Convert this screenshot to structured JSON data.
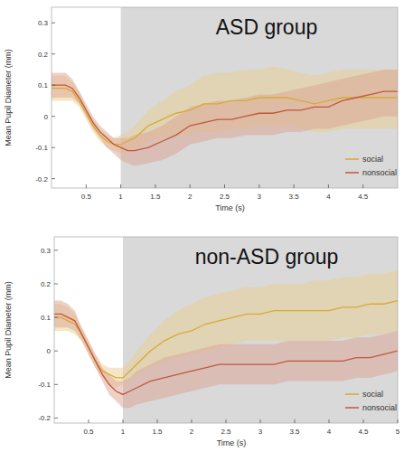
{
  "chart_data": [
    {
      "type": "line",
      "title": "ASD group",
      "x_label": "Time (s)",
      "y_label": "Mean Pupil Diameter (mm)",
      "x": [
        0,
        0.1,
        0.2,
        0.3,
        0.4,
        0.5,
        0.6,
        0.7,
        0.8,
        0.9,
        1.0,
        1.1,
        1.2,
        1.4,
        1.6,
        1.8,
        2.0,
        2.2,
        2.4,
        2.6,
        2.8,
        3.0,
        3.2,
        3.4,
        3.6,
        3.8,
        4.0,
        4.2,
        4.4,
        4.6,
        4.8,
        5.0
      ],
      "xlim": [
        0,
        5
      ],
      "xticks": [
        0.5,
        1,
        1.5,
        2,
        2.5,
        3,
        3.5,
        4,
        4.5
      ],
      "ylim": [
        -0.23,
        0.35
      ],
      "yticks": [
        -0.2,
        -0.1,
        0,
        0.1,
        0.2,
        0.3
      ],
      "shaded_region": [
        1,
        5
      ],
      "legend": "lower right",
      "series": [
        {
          "name": "social",
          "color": "#d9a935",
          "values": [
            0.09,
            0.09,
            0.09,
            0.08,
            0.05,
            0.01,
            -0.03,
            -0.06,
            -0.08,
            -0.09,
            -0.09,
            -0.08,
            -0.07,
            -0.03,
            -0.01,
            0.01,
            0.02,
            0.04,
            0.04,
            0.05,
            0.05,
            0.06,
            0.06,
            0.06,
            0.05,
            0.04,
            0.05,
            0.06,
            0.06,
            0.06,
            0.06,
            0.06
          ],
          "lower": [
            0.05,
            0.05,
            0.05,
            0.05,
            0.03,
            -0.01,
            -0.05,
            -0.08,
            -0.1,
            -0.11,
            -0.12,
            -0.11,
            -0.11,
            -0.08,
            -0.07,
            -0.06,
            -0.06,
            -0.05,
            -0.05,
            -0.04,
            -0.04,
            -0.03,
            -0.03,
            -0.03,
            -0.04,
            -0.05,
            -0.05,
            -0.04,
            -0.04,
            -0.04,
            -0.04,
            -0.04
          ],
          "upper": [
            0.13,
            0.13,
            0.13,
            0.11,
            0.08,
            0.03,
            -0.01,
            -0.04,
            -0.06,
            -0.07,
            -0.06,
            -0.05,
            -0.03,
            0.02,
            0.05,
            0.08,
            0.1,
            0.13,
            0.14,
            0.14,
            0.15,
            0.15,
            0.16,
            0.15,
            0.14,
            0.13,
            0.14,
            0.15,
            0.15,
            0.15,
            0.15,
            0.15
          ]
        },
        {
          "name": "nonsocial",
          "color": "#c0573b",
          "values": [
            0.1,
            0.1,
            0.1,
            0.09,
            0.06,
            0.02,
            -0.02,
            -0.05,
            -0.07,
            -0.09,
            -0.1,
            -0.11,
            -0.11,
            -0.1,
            -0.08,
            -0.06,
            -0.03,
            -0.02,
            -0.01,
            -0.01,
            0.0,
            0.01,
            0.01,
            0.02,
            0.02,
            0.03,
            0.03,
            0.05,
            0.06,
            0.07,
            0.08,
            0.08
          ],
          "lower": [
            0.06,
            0.06,
            0.06,
            0.06,
            0.04,
            0.0,
            -0.04,
            -0.07,
            -0.1,
            -0.12,
            -0.14,
            -0.15,
            -0.16,
            -0.15,
            -0.14,
            -0.12,
            -0.09,
            -0.08,
            -0.07,
            -0.07,
            -0.06,
            -0.06,
            -0.06,
            -0.05,
            -0.05,
            -0.04,
            -0.04,
            -0.03,
            -0.02,
            -0.01,
            0.0,
            0.0
          ],
          "upper": [
            0.14,
            0.14,
            0.14,
            0.12,
            0.08,
            0.04,
            0.0,
            -0.03,
            -0.05,
            -0.07,
            -0.07,
            -0.07,
            -0.06,
            -0.05,
            -0.03,
            0.0,
            0.03,
            0.04,
            0.05,
            0.05,
            0.06,
            0.07,
            0.07,
            0.08,
            0.09,
            0.1,
            0.11,
            0.12,
            0.13,
            0.14,
            0.15,
            0.15
          ]
        }
      ]
    },
    {
      "type": "line",
      "title": "non-ASD group",
      "x_label": "Time (s)",
      "y_label": "Mean Pupil Diameter (mm)",
      "x": [
        0,
        0.1,
        0.2,
        0.3,
        0.4,
        0.5,
        0.6,
        0.7,
        0.8,
        0.9,
        1.0,
        1.1,
        1.2,
        1.4,
        1.6,
        1.8,
        2.0,
        2.2,
        2.4,
        2.6,
        2.8,
        3.0,
        3.2,
        3.4,
        3.6,
        3.8,
        4.0,
        4.2,
        4.4,
        4.6,
        4.8,
        5.0
      ],
      "xlim": [
        0,
        5
      ],
      "xticks": [
        0.5,
        1,
        1.5,
        2,
        2.5,
        3,
        3.5,
        4,
        4.5,
        5
      ],
      "ylim": [
        -0.215,
        0.34
      ],
      "yticks": [
        -0.2,
        -0.1,
        0,
        0.1,
        0.2,
        0.3
      ],
      "shaded_region": [
        1,
        5
      ],
      "legend": "lower right",
      "series": [
        {
          "name": "social",
          "color": "#d9a935",
          "values": [
            0.1,
            0.1,
            0.09,
            0.08,
            0.05,
            0.01,
            -0.03,
            -0.06,
            -0.07,
            -0.08,
            -0.08,
            -0.06,
            -0.04,
            0.0,
            0.03,
            0.05,
            0.06,
            0.08,
            0.09,
            0.1,
            0.11,
            0.11,
            0.12,
            0.12,
            0.12,
            0.12,
            0.12,
            0.13,
            0.13,
            0.14,
            0.14,
            0.15
          ],
          "lower": [
            0.06,
            0.06,
            0.06,
            0.05,
            0.03,
            -0.01,
            -0.05,
            -0.08,
            -0.1,
            -0.11,
            -0.1,
            -0.09,
            -0.07,
            -0.05,
            -0.03,
            -0.02,
            -0.01,
            0.0,
            0.01,
            0.02,
            0.03,
            0.03,
            0.03,
            0.03,
            0.03,
            0.03,
            0.03,
            0.04,
            0.04,
            0.05,
            0.05,
            0.06
          ],
          "upper": [
            0.14,
            0.14,
            0.13,
            0.11,
            0.07,
            0.03,
            -0.01,
            -0.04,
            -0.05,
            -0.05,
            -0.05,
            -0.03,
            0.0,
            0.05,
            0.09,
            0.12,
            0.14,
            0.16,
            0.17,
            0.18,
            0.19,
            0.19,
            0.2,
            0.2,
            0.2,
            0.21,
            0.21,
            0.22,
            0.22,
            0.23,
            0.23,
            0.24
          ]
        },
        {
          "name": "nonsocial",
          "color": "#c0573b",
          "values": [
            0.11,
            0.11,
            0.1,
            0.09,
            0.05,
            0.01,
            -0.03,
            -0.07,
            -0.1,
            -0.12,
            -0.13,
            -0.12,
            -0.11,
            -0.09,
            -0.08,
            -0.07,
            -0.06,
            -0.05,
            -0.04,
            -0.04,
            -0.04,
            -0.04,
            -0.04,
            -0.03,
            -0.03,
            -0.03,
            -0.03,
            -0.03,
            -0.02,
            -0.02,
            -0.01,
            0.0
          ],
          "lower": [
            0.07,
            0.07,
            0.07,
            0.06,
            0.03,
            -0.01,
            -0.05,
            -0.09,
            -0.13,
            -0.15,
            -0.17,
            -0.17,
            -0.16,
            -0.15,
            -0.14,
            -0.13,
            -0.12,
            -0.11,
            -0.1,
            -0.1,
            -0.1,
            -0.1,
            -0.1,
            -0.09,
            -0.09,
            -0.09,
            -0.09,
            -0.09,
            -0.08,
            -0.08,
            -0.07,
            -0.06
          ],
          "upper": [
            0.15,
            0.15,
            0.14,
            0.12,
            0.07,
            0.03,
            -0.01,
            -0.05,
            -0.07,
            -0.09,
            -0.09,
            -0.08,
            -0.06,
            -0.04,
            -0.02,
            -0.01,
            0.0,
            0.01,
            0.02,
            0.02,
            0.02,
            0.02,
            0.02,
            0.03,
            0.03,
            0.03,
            0.03,
            0.03,
            0.04,
            0.04,
            0.05,
            0.06
          ]
        }
      ]
    }
  ]
}
